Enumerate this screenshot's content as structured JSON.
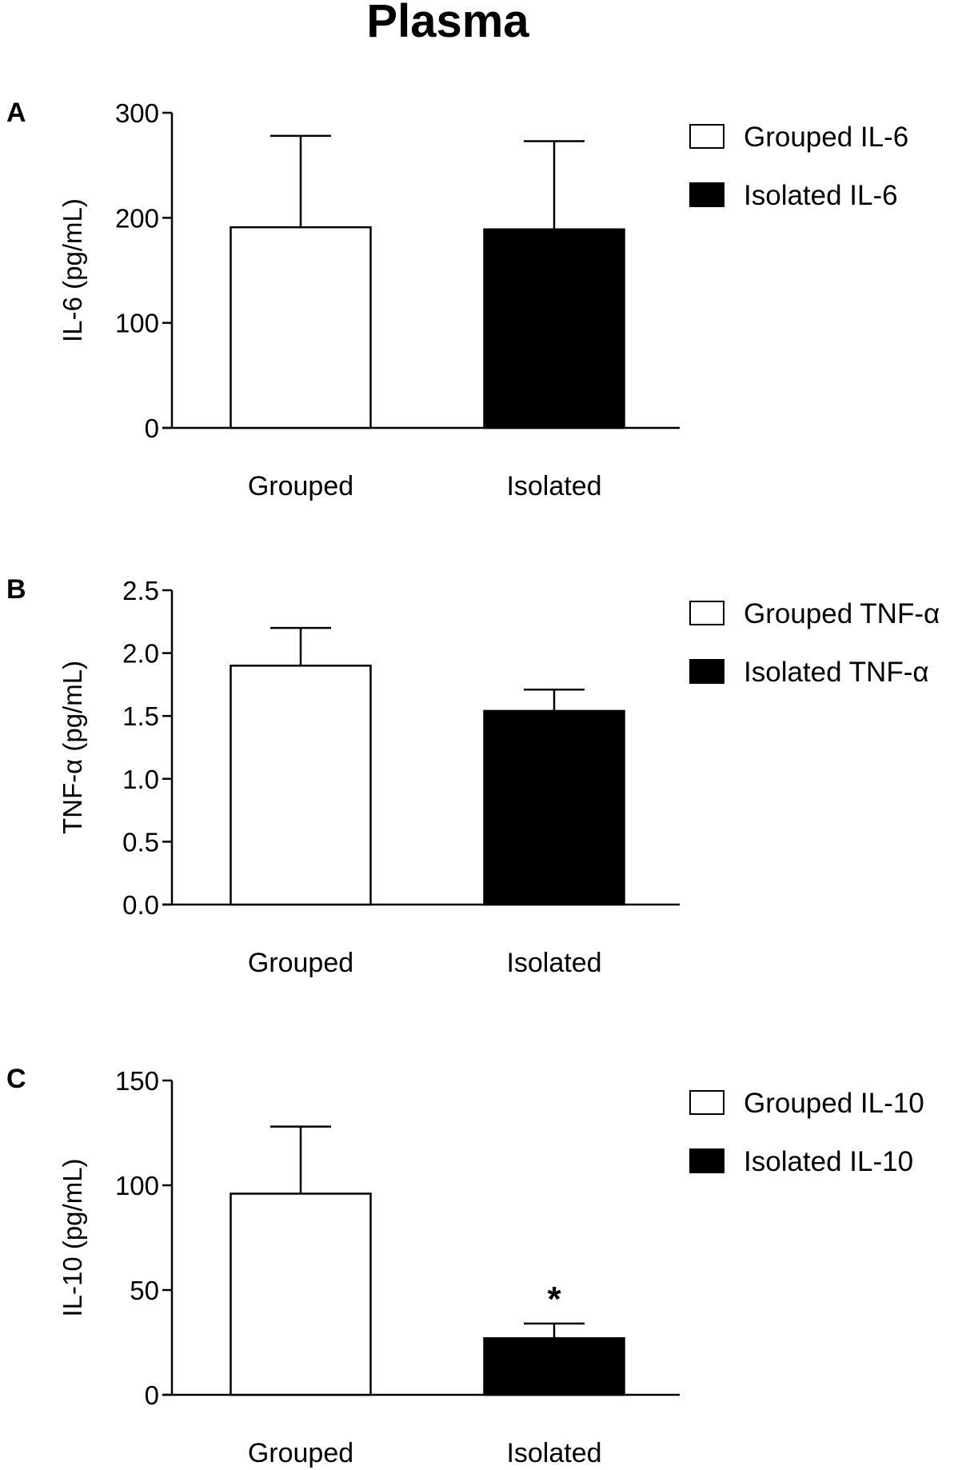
{
  "figure": {
    "title": "Plasma"
  },
  "chart_data": [
    {
      "panel": "A",
      "type": "bar",
      "ylabel": "IL-6 (pg/mL)",
      "categories": [
        "Grouped",
        "Isolated"
      ],
      "series": [
        {
          "name": "Grouped IL-6",
          "color": "#ffffff",
          "values": [
            191,
            null
          ],
          "error": [
            87,
            null
          ]
        },
        {
          "name": "Isolated IL-6",
          "color": "#000000",
          "values": [
            null,
            189
          ],
          "error": [
            null,
            84
          ]
        }
      ],
      "yticks": [
        "0",
        "100",
        "200",
        "300"
      ],
      "ytick_values": [
        0,
        100,
        200,
        300
      ],
      "ylim": [
        0,
        300
      ],
      "legend": [
        "Grouped IL-6",
        "Isolated IL-6"
      ],
      "legend_position": "right",
      "annotations": []
    },
    {
      "panel": "B",
      "type": "bar",
      "ylabel": "TNF-α (pg/mL)",
      "categories": [
        "Grouped",
        "Isolated"
      ],
      "series": [
        {
          "name": "Grouped TNF-α",
          "color": "#ffffff",
          "values": [
            1.9,
            null
          ],
          "error": [
            0.3,
            null
          ]
        },
        {
          "name": "Isolated TNF-α",
          "color": "#000000",
          "values": [
            null,
            1.54
          ],
          "error": [
            null,
            0.17
          ]
        }
      ],
      "yticks": [
        "0.0",
        "0.5",
        "1.0",
        "1.5",
        "2.0",
        "2.5"
      ],
      "ytick_values": [
        0,
        0.5,
        1.0,
        1.5,
        2.0,
        2.5
      ],
      "ylim": [
        0,
        2.5
      ],
      "legend": [
        "Grouped TNF-α",
        "Isolated TNF-α"
      ],
      "legend_position": "right",
      "annotations": []
    },
    {
      "panel": "C",
      "type": "bar",
      "ylabel": "IL-10 (pg/mL)",
      "categories": [
        "Grouped",
        "Isolated"
      ],
      "series": [
        {
          "name": "Grouped IL-10",
          "color": "#ffffff",
          "values": [
            96,
            null
          ],
          "error": [
            32,
            null
          ]
        },
        {
          "name": "Isolated IL-10",
          "color": "#000000",
          "values": [
            null,
            27
          ],
          "error": [
            null,
            7
          ]
        }
      ],
      "yticks": [
        "0",
        "50",
        "100",
        "150"
      ],
      "ytick_values": [
        0,
        50,
        100,
        150
      ],
      "ylim": [
        0,
        150
      ],
      "legend": [
        "Grouped IL-10",
        "Isolated IL-10"
      ],
      "legend_position": "right",
      "annotations": [
        {
          "category": "Isolated",
          "text": "*"
        }
      ]
    }
  ]
}
